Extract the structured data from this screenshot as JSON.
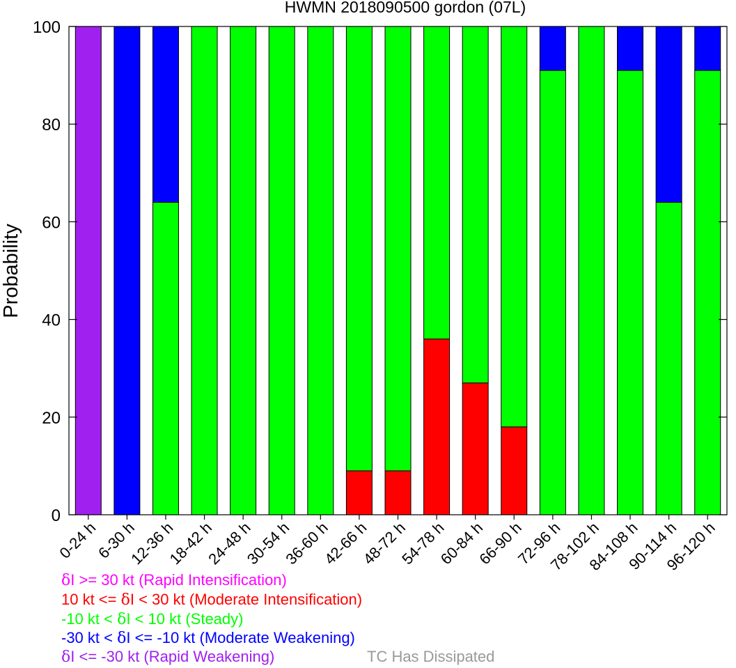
{
  "chart_data": {
    "type": "bar",
    "stacked": true,
    "title": "HWMN 2018090500 gordon (07L)",
    "xlabel": "",
    "ylabel": "Probability",
    "ylim": [
      0,
      100
    ],
    "yticks": [
      0,
      20,
      40,
      60,
      80,
      100
    ],
    "grid": false,
    "categories": [
      "0-24 h",
      "6-30 h",
      "12-36 h",
      "18-42 h",
      "24-48 h",
      "30-54 h",
      "36-60 h",
      "42-66 h",
      "48-72 h",
      "54-78 h",
      "60-84 h",
      "66-90 h",
      "72-96 h",
      "78-102 h",
      "84-108 h",
      "90-114 h",
      "96-120 h"
    ],
    "series": [
      {
        "key": "moderate_intensification",
        "color": "#ff0000",
        "values": [
          0,
          0,
          0,
          0,
          0,
          0,
          0,
          9,
          9,
          36,
          27,
          18,
          0,
          0,
          0,
          0,
          0
        ]
      },
      {
        "key": "steady",
        "color": "#00ff00",
        "values": [
          0,
          0,
          64,
          100,
          100,
          100,
          100,
          91,
          91,
          64,
          73,
          82,
          91,
          100,
          91,
          64,
          91
        ]
      },
      {
        "key": "moderate_weakening",
        "color": "#0000ff",
        "values": [
          0,
          100,
          36,
          0,
          0,
          0,
          0,
          0,
          0,
          0,
          0,
          0,
          9,
          0,
          9,
          36,
          9
        ]
      },
      {
        "key": "rapid_weakening",
        "color": "#a020f0",
        "values": [
          100,
          0,
          0,
          0,
          0,
          0,
          0,
          0,
          0,
          0,
          0,
          0,
          0,
          0,
          0,
          0,
          0
        ]
      }
    ],
    "legend_placement": "bottom-left",
    "legend": [
      {
        "delta": "δ",
        "text": "I >= 30 kt (Rapid Intensification)",
        "color": "#ff00ff"
      },
      {
        "delta": "δ",
        "prefix": "10 kt <= ",
        "text": "I < 30 kt (Moderate Intensification)",
        "color": "#ff0000"
      },
      {
        "delta": "δ",
        "prefix": "-10 kt < ",
        "text": "I < 10 kt (Steady)",
        "color": "#00ff00"
      },
      {
        "delta": "δ",
        "prefix": "-30 kt < ",
        "text": "I <= -10 kt (Moderate Weakening)",
        "color": "#0000ff"
      },
      {
        "delta": "δ",
        "text": "I <= -30 kt (Rapid Weakening)",
        "color": "#a020f0"
      }
    ],
    "dissipated_label": {
      "text": "TC Has Dissipated",
      "color": "#999999"
    }
  }
}
